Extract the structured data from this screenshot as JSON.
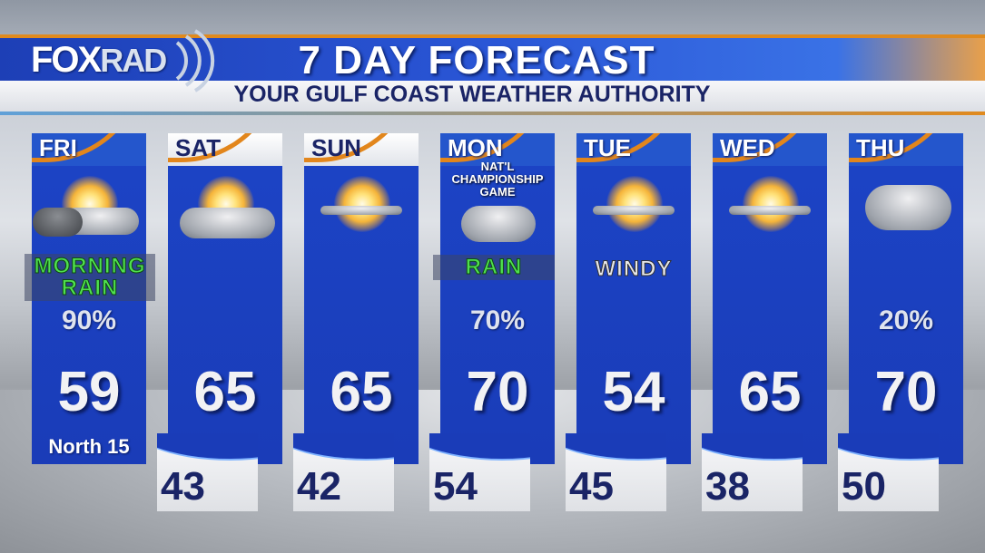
{
  "header": {
    "logo": "FOXRAD",
    "logo_part1": "FOX",
    "logo_part2": "RAD",
    "title": "7 DAY FORECAST",
    "subtitle": "YOUR GULF COAST WEATHER AUTHORITY"
  },
  "colors": {
    "card_blue": "#1a3cb8",
    "accent_orange": "#e2861c",
    "low_text": "#1a2466",
    "condition_green": "#4fe04f"
  },
  "days": [
    {
      "day": "FRI",
      "icon": "partly-sunny-rain-icon",
      "condition": [
        "MORNING",
        "RAIN"
      ],
      "condition_style": "green",
      "precip": "90%",
      "high": "59",
      "wind": "North 15",
      "low": ""
    },
    {
      "day": "SAT",
      "icon": "partly-cloudy-icon",
      "high": "65",
      "low": "43"
    },
    {
      "day": "SUN",
      "icon": "mostly-sunny-icon",
      "high": "65",
      "low": "42"
    },
    {
      "day": "MON",
      "icon": "rain-cloud-icon",
      "note": "NAT'L CHAMPIONSHIP GAME",
      "condition": [
        "RAIN"
      ],
      "condition_style": "green",
      "precip": "70%",
      "high": "70",
      "low": "54"
    },
    {
      "day": "TUE",
      "icon": "mostly-sunny-icon",
      "condition": [
        "WINDY"
      ],
      "condition_style": "white",
      "high": "54",
      "low": "45"
    },
    {
      "day": "WED",
      "icon": "mostly-sunny-icon",
      "high": "65",
      "low": "38"
    },
    {
      "day": "THU",
      "icon": "cloudy-icon",
      "precip": "20%",
      "high": "70",
      "low": "50"
    }
  ]
}
